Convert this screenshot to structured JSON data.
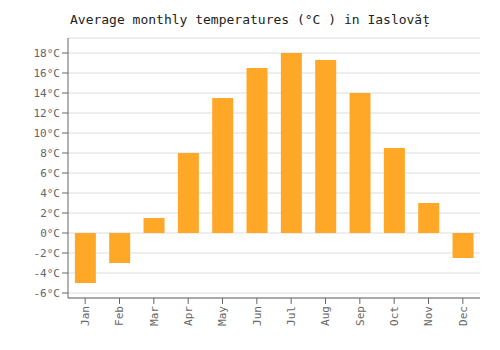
{
  "chart_data": {
    "type": "bar",
    "title": "Average monthly temperatures (°C ) in Iaslovăț",
    "categories": [
      "Jan",
      "Feb",
      "Mar",
      "Apr",
      "May",
      "Jun",
      "Jul",
      "Aug",
      "Sep",
      "Oct",
      "Nov",
      "Dec"
    ],
    "values": [
      -5.0,
      -3.0,
      1.5,
      8.0,
      13.5,
      16.5,
      18.0,
      17.3,
      14.0,
      8.5,
      3.0,
      -2.5
    ],
    "color": "#FFA726",
    "ylim": [
      -6.5,
      19.5
    ],
    "yticks": [
      {
        "value": -6,
        "label": "-6°C"
      },
      {
        "value": -4,
        "label": "-4°C"
      },
      {
        "value": -2,
        "label": "-2°C"
      },
      {
        "value": 0,
        "label": "0°C"
      },
      {
        "value": 2,
        "label": "2°C"
      },
      {
        "value": 4,
        "label": "4°C"
      },
      {
        "value": 6,
        "label": "6°C"
      },
      {
        "value": 8,
        "label": "8°C"
      },
      {
        "value": 10,
        "label": "10°C"
      },
      {
        "value": 12,
        "label": "12°C"
      },
      {
        "value": 14,
        "label": "14°C"
      },
      {
        "value": 16,
        "label": "16°C"
      },
      {
        "value": 18,
        "label": "18°C"
      }
    ],
    "grid": true
  }
}
